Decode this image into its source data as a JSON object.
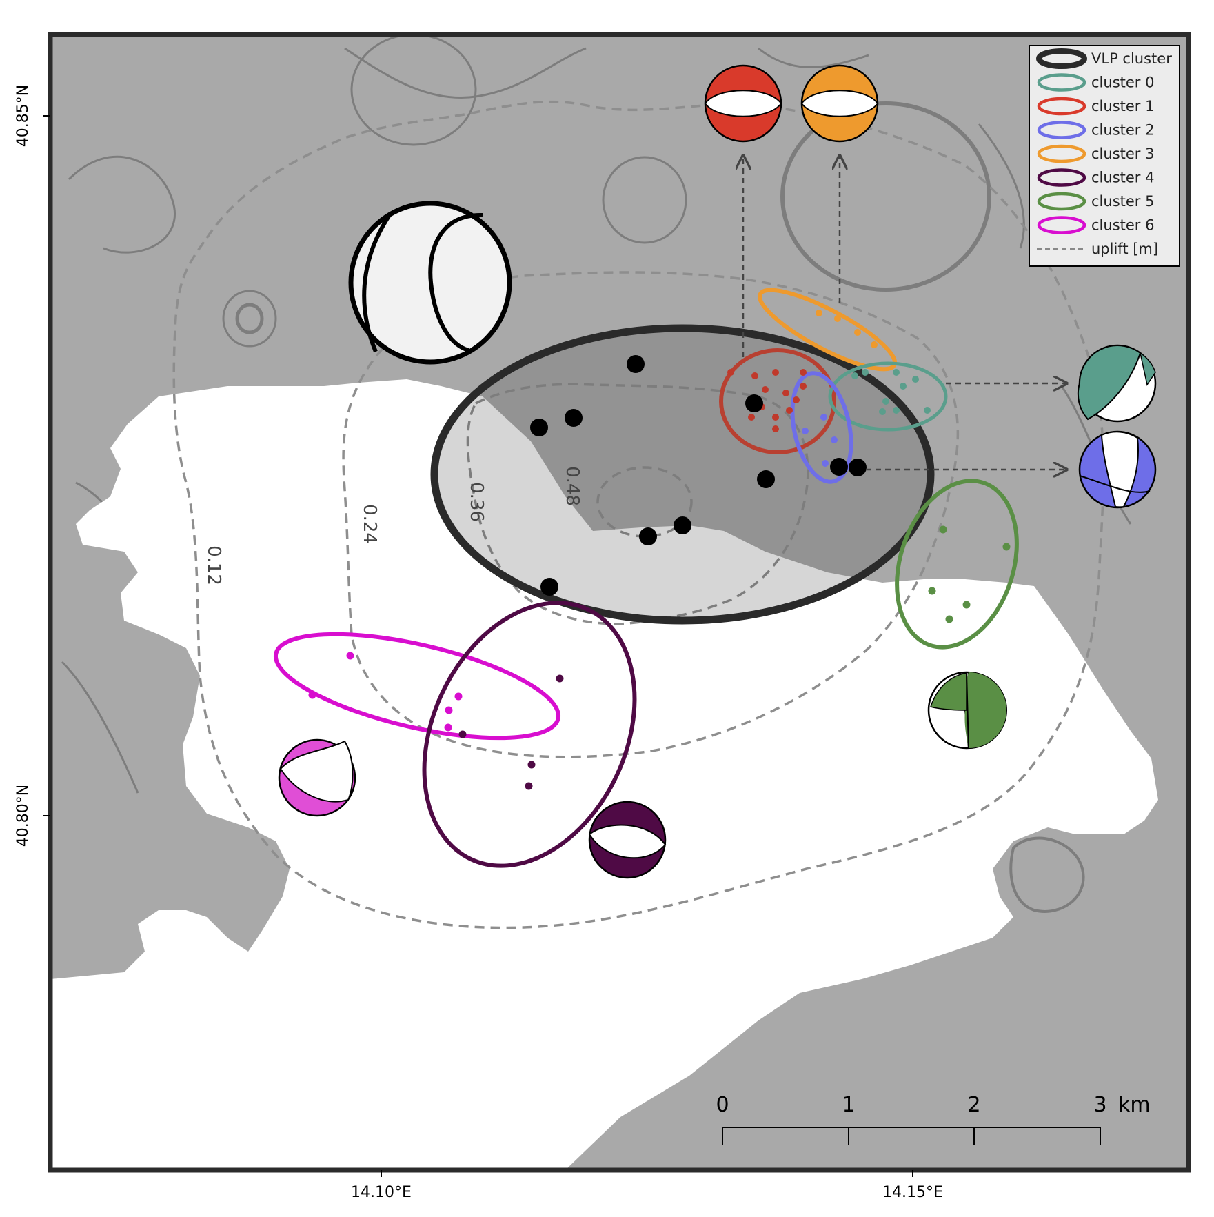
{
  "axes": {
    "y_ticks": [
      "40.85°N",
      "40.80°N"
    ],
    "x_ticks": [
      "14.10°E",
      "14.15°E"
    ]
  },
  "legend": {
    "items": [
      {
        "label": "VLP cluster",
        "color": "#2a2a2a",
        "style": "ellipse-thick"
      },
      {
        "label": "cluster 0",
        "color": "#5a9e8c",
        "style": "ellipse"
      },
      {
        "label": "cluster 1",
        "color": "#d93a2b",
        "style": "ellipse"
      },
      {
        "label": "cluster 2",
        "color": "#6e6ee8",
        "style": "ellipse"
      },
      {
        "label": "cluster 3",
        "color": "#ee9a2e",
        "style": "ellipse"
      },
      {
        "label": "cluster 4",
        "color": "#4f0a45",
        "style": "ellipse"
      },
      {
        "label": "cluster 5",
        "color": "#5a8f45",
        "style": "ellipse"
      },
      {
        "label": "cluster 6",
        "color": "#d80ecf",
        "style": "ellipse"
      },
      {
        "label": "uplift [m]",
        "color": "#888888",
        "style": "dashed"
      }
    ]
  },
  "uplift_contours": [
    "0.12",
    "0.24",
    "0.36",
    "0.48"
  ],
  "scale_bar": {
    "labels": [
      "0",
      "1",
      "2",
      "3"
    ],
    "unit": "km"
  },
  "colors": {
    "land": "#a9a9a9",
    "sea": "#ffffff",
    "frame": "#2b2b2b",
    "cluster0": "#5a9e8c",
    "cluster1": "#d93a2b",
    "cluster2": "#6e6ee8",
    "cluster3": "#ee9a2e",
    "cluster4": "#4f0a45",
    "cluster5": "#5a8f45",
    "cluster6": "#d80ecf"
  },
  "icons": [
    "focal-mechanism-beachball",
    "dashed-arrow"
  ]
}
